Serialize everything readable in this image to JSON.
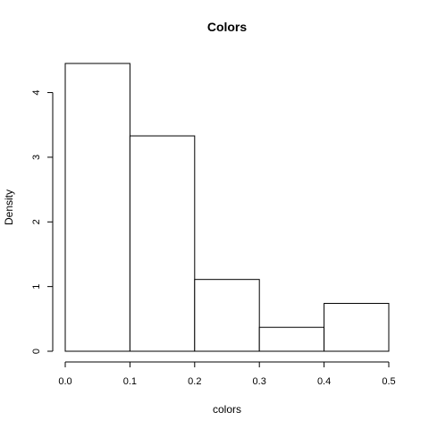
{
  "chart_data": {
    "type": "bar",
    "title": "Colors",
    "xlabel": "colors",
    "ylabel": "Density",
    "bins": [
      {
        "from": 0.0,
        "to": 0.1,
        "value": 4.45
      },
      {
        "from": 0.1,
        "to": 0.2,
        "value": 3.33
      },
      {
        "from": 0.2,
        "to": 0.3,
        "value": 1.11
      },
      {
        "from": 0.3,
        "to": 0.4,
        "value": 0.37
      },
      {
        "from": 0.4,
        "to": 0.5,
        "value": 0.74
      }
    ],
    "xlim": [
      0,
      0.5
    ],
    "ylim": [
      0,
      4.45
    ],
    "xticks": [
      "0.0",
      "0.1",
      "0.2",
      "0.3",
      "0.4",
      "0.5"
    ],
    "yticks": [
      "0",
      "1",
      "2",
      "3",
      "4"
    ],
    "grid": false,
    "legend": "none",
    "bar_fill": "#ffffff",
    "bar_stroke": "#000000"
  }
}
